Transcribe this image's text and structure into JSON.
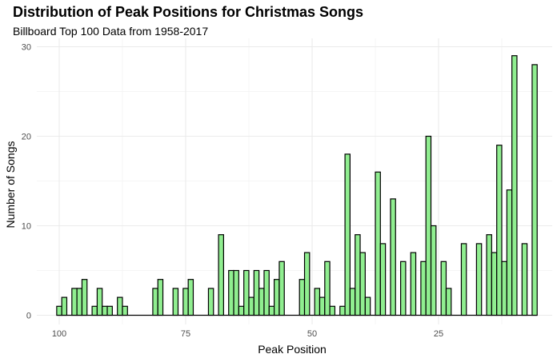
{
  "chart_data": {
    "type": "bar",
    "title": "Distribution of Peak Positions for Christmas Songs",
    "subtitle": "Billboard Top 100 Data from 1958-2017",
    "xlabel": "Peak Position",
    "ylabel": "Number of Songs",
    "x_reversed": true,
    "xlim": [
      100,
      1
    ],
    "ylim": [
      0,
      30
    ],
    "x_ticks": [
      100,
      75,
      50,
      25
    ],
    "y_ticks": [
      0,
      10,
      20,
      30
    ],
    "grid": true,
    "fill_color": "#90EE90",
    "stroke_color": "#000000",
    "points": [
      {
        "x": 100,
        "y": 1
      },
      {
        "x": 99,
        "y": 2
      },
      {
        "x": 97,
        "y": 3
      },
      {
        "x": 96,
        "y": 3
      },
      {
        "x": 95,
        "y": 4
      },
      {
        "x": 93,
        "y": 1
      },
      {
        "x": 92,
        "y": 3
      },
      {
        "x": 91,
        "y": 1
      },
      {
        "x": 90,
        "y": 1
      },
      {
        "x": 88,
        "y": 2
      },
      {
        "x": 87,
        "y": 1
      },
      {
        "x": 81,
        "y": 3
      },
      {
        "x": 80,
        "y": 4
      },
      {
        "x": 77,
        "y": 3
      },
      {
        "x": 75,
        "y": 3
      },
      {
        "x": 74,
        "y": 4
      },
      {
        "x": 70,
        "y": 3
      },
      {
        "x": 68,
        "y": 9
      },
      {
        "x": 66,
        "y": 5
      },
      {
        "x": 65,
        "y": 5
      },
      {
        "x": 64,
        "y": 1
      },
      {
        "x": 63,
        "y": 5
      },
      {
        "x": 62,
        "y": 2
      },
      {
        "x": 61,
        "y": 5
      },
      {
        "x": 60,
        "y": 3
      },
      {
        "x": 59,
        "y": 5
      },
      {
        "x": 58,
        "y": 1
      },
      {
        "x": 57,
        "y": 4
      },
      {
        "x": 56,
        "y": 6
      },
      {
        "x": 52,
        "y": 4
      },
      {
        "x": 51,
        "y": 7
      },
      {
        "x": 49,
        "y": 3
      },
      {
        "x": 48,
        "y": 2
      },
      {
        "x": 47,
        "y": 6
      },
      {
        "x": 46,
        "y": 1
      },
      {
        "x": 44,
        "y": 1
      },
      {
        "x": 43,
        "y": 18
      },
      {
        "x": 42,
        "y": 3
      },
      {
        "x": 41,
        "y": 9
      },
      {
        "x": 40,
        "y": 7
      },
      {
        "x": 39,
        "y": 2
      },
      {
        "x": 37,
        "y": 16
      },
      {
        "x": 36,
        "y": 8
      },
      {
        "x": 34,
        "y": 13
      },
      {
        "x": 32,
        "y": 6
      },
      {
        "x": 30,
        "y": 7
      },
      {
        "x": 28,
        "y": 6
      },
      {
        "x": 27,
        "y": 20
      },
      {
        "x": 26,
        "y": 10
      },
      {
        "x": 24,
        "y": 6
      },
      {
        "x": 23,
        "y": 3
      },
      {
        "x": 20,
        "y": 8
      },
      {
        "x": 17,
        "y": 8
      },
      {
        "x": 15,
        "y": 9
      },
      {
        "x": 14,
        "y": 7
      },
      {
        "x": 13,
        "y": 19
      },
      {
        "x": 12,
        "y": 6
      },
      {
        "x": 11,
        "y": 14
      },
      {
        "x": 10,
        "y": 29
      },
      {
        "x": 8,
        "y": 8
      },
      {
        "x": 6,
        "y": 28
      }
    ]
  }
}
